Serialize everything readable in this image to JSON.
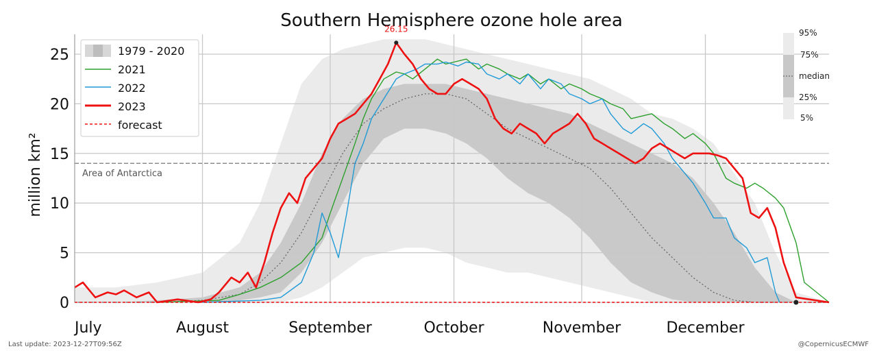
{
  "chart_data": {
    "type": "line",
    "title": "Southern Hemisphere ozone hole area",
    "ylabel": "million km²",
    "ylim": [
      0,
      27
    ],
    "yticks": [
      0,
      5,
      10,
      15,
      20,
      25
    ],
    "month_ticks": [
      {
        "label": "July",
        "day": 0
      },
      {
        "label": "August",
        "day": 31
      },
      {
        "label": "September",
        "day": 62
      },
      {
        "label": "October",
        "day": 92
      },
      {
        "label": "November",
        "day": 123
      },
      {
        "label": "December",
        "day": 153
      }
    ],
    "xlim_days": [
      0,
      183
    ],
    "reference_line": {
      "label": "Area of Antarctica",
      "value": 14.0
    },
    "peak_annotation": {
      "label": "26.15",
      "day": 78,
      "value": 26.15
    },
    "legend": [
      {
        "label": "1979 - 2020",
        "kind": "band"
      },
      {
        "label": "2021",
        "kind": "line",
        "color": "#2ca02c"
      },
      {
        "label": "2022",
        "kind": "line",
        "color": "#1f9ad6"
      },
      {
        "label": "2023",
        "kind": "line",
        "color": "#ee1111"
      },
      {
        "label": "forecast",
        "kind": "dashed",
        "color": "#ee1111"
      }
    ],
    "band_legend": [
      "95%",
      "75%",
      "median",
      "25%",
      "5%"
    ],
    "climatology": {
      "x": [
        0,
        10,
        20,
        31,
        40,
        45,
        50,
        55,
        60,
        65,
        70,
        75,
        80,
        85,
        90,
        95,
        100,
        105,
        110,
        115,
        120,
        125,
        130,
        135,
        140,
        145,
        150,
        155,
        160,
        165,
        170,
        175,
        183
      ],
      "p95": [
        1.5,
        1.5,
        2.0,
        3.0,
        6.0,
        10.0,
        16.0,
        22.0,
        24.5,
        25.5,
        26.0,
        26.5,
        26.5,
        26.5,
        26.0,
        25.5,
        25.0,
        24.5,
        24.0,
        23.5,
        23.0,
        22.5,
        21.5,
        20.5,
        19.0,
        18.5,
        17.5,
        16.0,
        13.0,
        10.0,
        5.0,
        1.0,
        0.0
      ],
      "p75": [
        0.0,
        0.0,
        0.2,
        0.5,
        1.5,
        3.0,
        6.0,
        10.0,
        15.0,
        18.5,
        20.5,
        21.5,
        22.0,
        22.0,
        22.0,
        21.5,
        21.0,
        20.5,
        20.0,
        19.5,
        19.0,
        18.0,
        17.0,
        16.0,
        15.0,
        14.0,
        12.5,
        10.0,
        7.0,
        3.5,
        1.0,
        0.0,
        0.0
      ],
      "median": [
        0.0,
        0.0,
        0.0,
        0.2,
        0.8,
        2.0,
        4.0,
        7.0,
        11.0,
        15.0,
        18.0,
        19.5,
        20.5,
        21.0,
        21.0,
        20.5,
        19.0,
        17.5,
        16.5,
        15.5,
        14.5,
        13.5,
        11.5,
        9.0,
        6.5,
        4.5,
        2.5,
        1.0,
        0.2,
        0.0,
        0.0,
        0.0,
        0.0
      ],
      "p25": [
        0.0,
        0.0,
        0.0,
        0.0,
        0.2,
        0.5,
        1.0,
        3.0,
        6.0,
        10.0,
        14.0,
        16.5,
        17.5,
        17.5,
        17.0,
        16.0,
        14.5,
        12.5,
        11.0,
        10.0,
        8.5,
        6.5,
        4.0,
        2.0,
        1.0,
        0.3,
        0.0,
        0.0,
        0.0,
        0.0,
        0.0,
        0.0,
        0.0
      ],
      "p5": [
        0.0,
        0.0,
        0.0,
        0.0,
        0.0,
        0.0,
        0.0,
        0.5,
        1.5,
        3.0,
        4.5,
        5.0,
        5.5,
        5.5,
        5.0,
        4.0,
        3.5,
        3.0,
        3.0,
        2.5,
        2.0,
        1.5,
        1.0,
        0.5,
        0.0,
        0.0,
        0.0,
        0.0,
        0.0,
        0.0,
        0.0,
        0.0,
        0.0
      ]
    },
    "series": [
      {
        "name": "2021",
        "color": "#2ca02c",
        "x": [
          20,
          35,
          40,
          45,
          50,
          55,
          60,
          62,
          65,
          68,
          70,
          72,
          75,
          78,
          80,
          82,
          85,
          88,
          90,
          92,
          95,
          98,
          100,
          103,
          105,
          108,
          110,
          113,
          115,
          118,
          120,
          123,
          125,
          128,
          130,
          133,
          135,
          138,
          140,
          143,
          145,
          148,
          150,
          153,
          155,
          158,
          160,
          163,
          165,
          167,
          170,
          172,
          175,
          177,
          183
        ],
        "y": [
          0,
          0.2,
          0.8,
          1.5,
          2.5,
          4.0,
          6.5,
          9.0,
          12.5,
          16.0,
          18.5,
          20.5,
          22.5,
          23.2,
          23.0,
          22.5,
          23.5,
          24.5,
          24.0,
          24.2,
          24.5,
          23.5,
          24.0,
          23.5,
          23.0,
          22.5,
          23.0,
          22.0,
          22.5,
          21.5,
          22.0,
          21.5,
          21.0,
          20.5,
          20.0,
          19.5,
          18.5,
          18.8,
          19.0,
          18.0,
          17.5,
          16.5,
          17.0,
          16.0,
          15.0,
          12.5,
          12.0,
          11.5,
          12.0,
          11.5,
          10.5,
          9.5,
          6.0,
          2.0,
          0.0
        ]
      },
      {
        "name": "2022",
        "color": "#1f9ad6",
        "x": [
          31,
          45,
          50,
          55,
          58,
          60,
          62,
          64,
          66,
          68,
          70,
          72,
          75,
          78,
          80,
          83,
          85,
          88,
          90,
          93,
          95,
          98,
          100,
          103,
          105,
          108,
          110,
          113,
          115,
          118,
          120,
          123,
          125,
          128,
          130,
          133,
          135,
          138,
          140,
          143,
          145,
          148,
          150,
          153,
          155,
          158,
          160,
          163,
          165,
          168,
          170,
          171
        ],
        "y": [
          0,
          0.2,
          0.5,
          2.0,
          5.0,
          9.0,
          7.0,
          4.5,
          9.0,
          14.0,
          16.0,
          18.5,
          20.5,
          22.5,
          23.0,
          23.5,
          24.0,
          24.0,
          24.2,
          23.8,
          24.2,
          24.0,
          23.0,
          22.5,
          23.0,
          22.0,
          23.0,
          21.5,
          22.5,
          22.0,
          21.0,
          20.5,
          20.0,
          20.5,
          19.0,
          17.5,
          17.0,
          18.0,
          17.5,
          16.0,
          14.5,
          13.0,
          12.0,
          10.0,
          8.5,
          8.5,
          6.5,
          5.5,
          4.0,
          4.5,
          1.0,
          0.0
        ]
      },
      {
        "name": "2023",
        "color": "#ee1111",
        "x": [
          0,
          2,
          5,
          8,
          10,
          12,
          15,
          18,
          20,
          25,
          30,
          33,
          35,
          38,
          40,
          42,
          44,
          46,
          48,
          50,
          52,
          54,
          56,
          58,
          60,
          62,
          64,
          66,
          68,
          70,
          72,
          74,
          76,
          78,
          80,
          82,
          84,
          86,
          88,
          90,
          92,
          94,
          96,
          98,
          100,
          102,
          104,
          106,
          108,
          110,
          112,
          114,
          116,
          118,
          120,
          122,
          124,
          126,
          128,
          130,
          132,
          134,
          136,
          138,
          140,
          142,
          144,
          146,
          148,
          150,
          152,
          154,
          156,
          158,
          160,
          162,
          164,
          166,
          168,
          170,
          172,
          175,
          183
        ],
        "y": [
          1.5,
          2.0,
          0.5,
          1.0,
          0.8,
          1.2,
          0.5,
          1.0,
          0.0,
          0.3,
          0.0,
          0.3,
          1.0,
          2.5,
          2.0,
          3.0,
          1.5,
          4.0,
          7.0,
          9.5,
          11.0,
          10.0,
          12.5,
          13.5,
          14.5,
          16.5,
          18.0,
          18.5,
          19.0,
          20.0,
          21.0,
          22.5,
          24.0,
          26.15,
          25.0,
          24.0,
          22.5,
          21.5,
          21.0,
          21.0,
          22.0,
          22.5,
          22.0,
          21.5,
          20.5,
          18.5,
          17.5,
          17.0,
          18.0,
          17.5,
          17.0,
          16.0,
          17.0,
          17.5,
          18.0,
          19.0,
          18.0,
          16.5,
          16.0,
          15.5,
          15.0,
          14.5,
          14.0,
          14.5,
          15.5,
          16.0,
          15.5,
          15.0,
          14.5,
          15.0,
          15.0,
          15.0,
          14.8,
          14.5,
          13.5,
          12.5,
          9.0,
          8.5,
          9.5,
          7.5,
          4.0,
          0.5,
          0.0
        ]
      },
      {
        "name": "forecast",
        "color": "#ee1111",
        "dashed": true,
        "x": [
          0,
          183
        ],
        "y": [
          0.0,
          0.0
        ]
      }
    ]
  },
  "footer": {
    "left": "Last update: 2023-12-27T09:56Z",
    "right": "@CopernicusECMWF"
  }
}
